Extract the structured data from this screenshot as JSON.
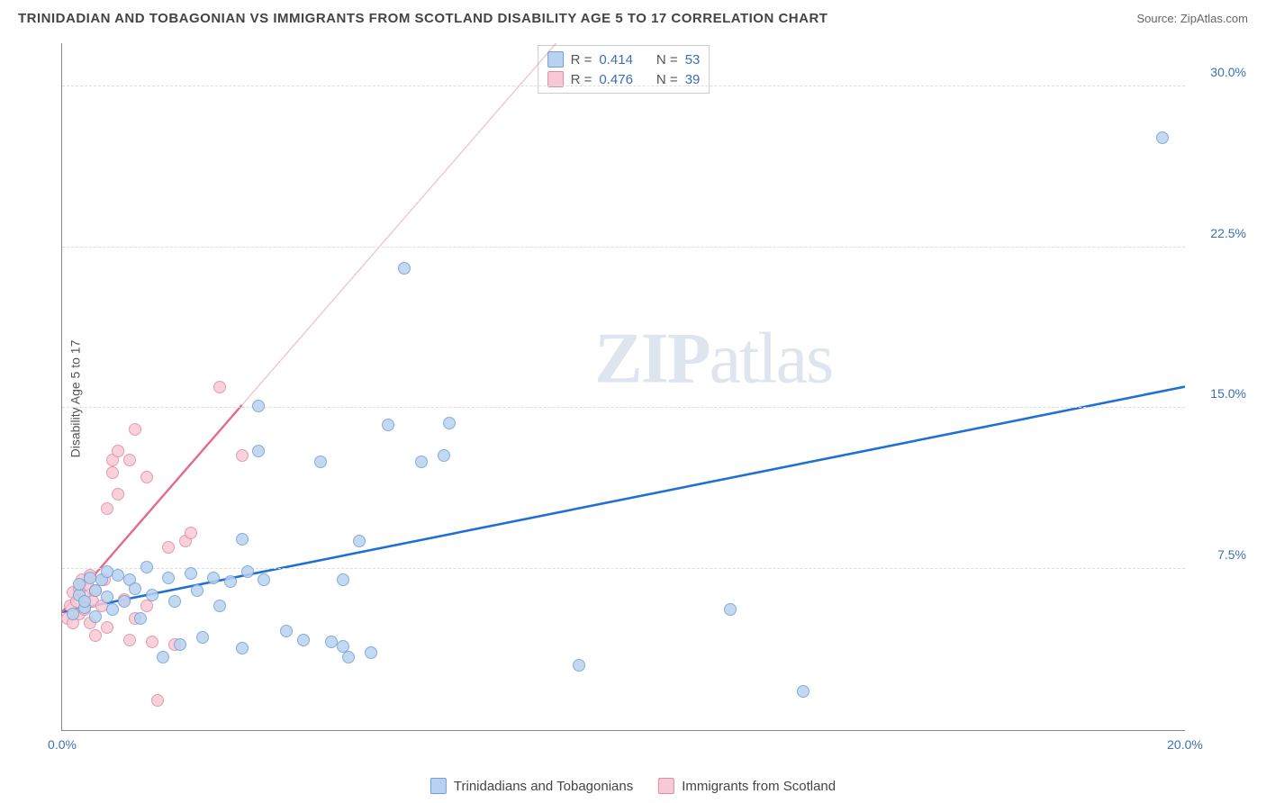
{
  "header": {
    "title": "TRINIDADIAN AND TOBAGONIAN VS IMMIGRANTS FROM SCOTLAND DISABILITY AGE 5 TO 17 CORRELATION CHART",
    "source_prefix": "Source: ",
    "source_name": "ZipAtlas.com"
  },
  "chart": {
    "type": "scatter",
    "y_axis_label": "Disability Age 5 to 17",
    "x_range": [
      0,
      20
    ],
    "y_range": [
      0,
      32
    ],
    "x_ticks": [
      {
        "value": 0,
        "label": "0.0%"
      },
      {
        "value": 20,
        "label": "20.0%"
      }
    ],
    "y_ticks": [
      {
        "value": 7.5,
        "label": "7.5%"
      },
      {
        "value": 15.0,
        "label": "15.0%"
      },
      {
        "value": 22.5,
        "label": "22.5%"
      },
      {
        "value": 30.0,
        "label": "30.0%"
      }
    ],
    "grid_color": "#dddddd",
    "axis_color": "#888888",
    "background": "#ffffff",
    "tick_text_color": "#3b6fb6",
    "series": [
      {
        "id": "trinidad",
        "label": "Trinidadians and Tobagonians",
        "fill": "#b9d2ef",
        "stroke": "#6f9fd6",
        "trend_color": "#1f6fd6",
        "trend_solid_end_x": 20,
        "trend_dash_from_x": null,
        "trend": {
          "x1": 0,
          "y1": 5.5,
          "x2": 20,
          "y2": 16.0
        },
        "r_value": "0.414",
        "n_value": "53",
        "points": [
          [
            0.2,
            5.4
          ],
          [
            0.3,
            6.3
          ],
          [
            0.3,
            6.8
          ],
          [
            0.4,
            5.7
          ],
          [
            0.4,
            6.0
          ],
          [
            0.5,
            7.1
          ],
          [
            0.6,
            6.5
          ],
          [
            0.6,
            5.3
          ],
          [
            0.7,
            7.0
          ],
          [
            0.8,
            6.2
          ],
          [
            0.8,
            7.4
          ],
          [
            0.9,
            5.6
          ],
          [
            1.0,
            7.2
          ],
          [
            1.1,
            6.0
          ],
          [
            1.2,
            7.0
          ],
          [
            1.3,
            6.6
          ],
          [
            1.4,
            5.2
          ],
          [
            1.5,
            7.6
          ],
          [
            1.6,
            6.3
          ],
          [
            1.8,
            3.4
          ],
          [
            1.9,
            7.1
          ],
          [
            2.0,
            6.0
          ],
          [
            2.1,
            4.0
          ],
          [
            2.3,
            7.3
          ],
          [
            2.4,
            6.5
          ],
          [
            2.5,
            4.3
          ],
          [
            2.7,
            7.1
          ],
          [
            2.8,
            5.8
          ],
          [
            3.0,
            6.9
          ],
          [
            3.2,
            3.8
          ],
          [
            3.2,
            8.9
          ],
          [
            3.3,
            7.4
          ],
          [
            3.5,
            13.0
          ],
          [
            3.6,
            7.0
          ],
          [
            4.0,
            4.6
          ],
          [
            4.3,
            4.2
          ],
          [
            4.6,
            12.5
          ],
          [
            4.8,
            4.1
          ],
          [
            5.0,
            3.9
          ],
          [
            5.1,
            3.4
          ],
          [
            5.3,
            8.8
          ],
          [
            5.5,
            3.6
          ],
          [
            5.8,
            14.2
          ],
          [
            6.1,
            21.5
          ],
          [
            6.4,
            12.5
          ],
          [
            6.8,
            12.8
          ],
          [
            6.9,
            14.3
          ],
          [
            9.2,
            3.0
          ],
          [
            11.9,
            5.6
          ],
          [
            13.2,
            1.8
          ],
          [
            19.6,
            27.6
          ],
          [
            3.5,
            15.1
          ],
          [
            5.0,
            7.0
          ]
        ]
      },
      {
        "id": "scotland",
        "label": "Immigrants from Scotland",
        "fill": "#f7c9d4",
        "stroke": "#e08ba0",
        "trend_color": "#e26a8a",
        "trend_solid_end_x": 3.2,
        "trend_dash_from_x": 3.2,
        "trend": {
          "x1": 0,
          "y1": 5.5,
          "x2": 8.8,
          "y2": 32.0
        },
        "r_value": "0.476",
        "n_value": "39",
        "points": [
          [
            0.1,
            5.2
          ],
          [
            0.15,
            5.8
          ],
          [
            0.2,
            6.4
          ],
          [
            0.2,
            5.0
          ],
          [
            0.25,
            6.0
          ],
          [
            0.3,
            6.6
          ],
          [
            0.3,
            5.4
          ],
          [
            0.35,
            7.0
          ],
          [
            0.4,
            6.2
          ],
          [
            0.4,
            5.6
          ],
          [
            0.45,
            6.8
          ],
          [
            0.5,
            5.0
          ],
          [
            0.5,
            7.2
          ],
          [
            0.55,
            6.0
          ],
          [
            0.6,
            4.4
          ],
          [
            0.6,
            6.5
          ],
          [
            0.7,
            5.8
          ],
          [
            0.75,
            7.0
          ],
          [
            0.8,
            4.8
          ],
          [
            0.8,
            10.3
          ],
          [
            0.9,
            12.0
          ],
          [
            0.9,
            12.6
          ],
          [
            1.0,
            11.0
          ],
          [
            1.0,
            13.0
          ],
          [
            1.1,
            6.1
          ],
          [
            1.2,
            4.2
          ],
          [
            1.2,
            12.6
          ],
          [
            1.3,
            5.2
          ],
          [
            1.3,
            14.0
          ],
          [
            1.5,
            11.8
          ],
          [
            1.5,
            5.8
          ],
          [
            1.6,
            4.1
          ],
          [
            1.7,
            1.4
          ],
          [
            1.9,
            8.5
          ],
          [
            2.0,
            4.0
          ],
          [
            2.2,
            8.8
          ],
          [
            2.3,
            9.2
          ],
          [
            2.8,
            16.0
          ],
          [
            3.2,
            12.8
          ]
        ]
      }
    ],
    "legend_top": {
      "r_label": "R =",
      "n_label": "N =",
      "value_color": "#3b6fb6",
      "text_color": "#555555"
    },
    "watermark": {
      "zip": "ZIP",
      "atlas": "atlas"
    }
  }
}
